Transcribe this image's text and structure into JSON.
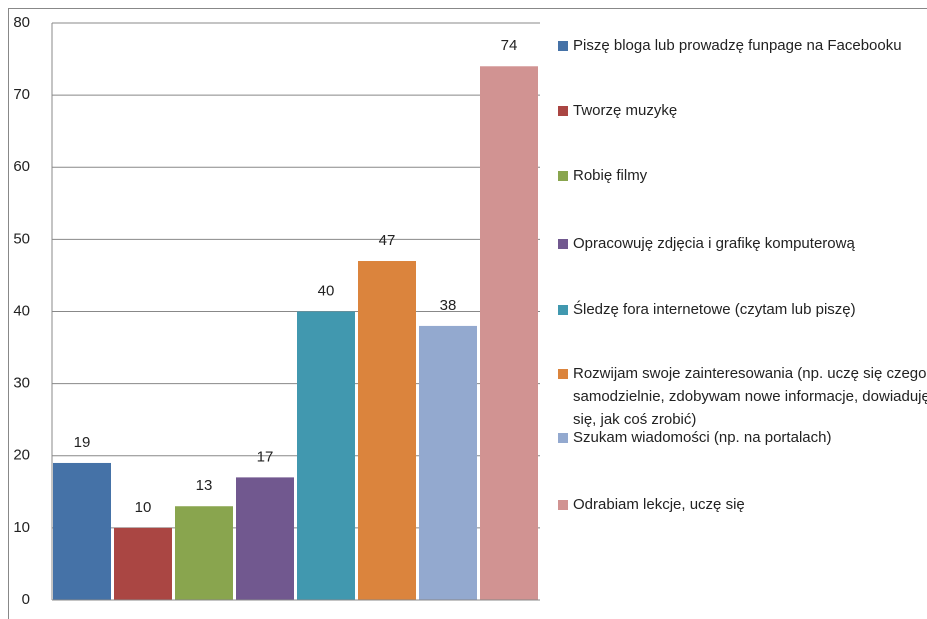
{
  "chart_data": {
    "type": "bar",
    "series": [
      {
        "name": "Piszę bloga lub prowadzę funpage na Facebooku",
        "color": "#4572a7",
        "values": [
          19
        ]
      },
      {
        "name": "Tworzę muzykę",
        "color": "#aa4643",
        "values": [
          10
        ]
      },
      {
        "name": "Robię filmy",
        "color": "#89a54e",
        "values": [
          13
        ]
      },
      {
        "name": "Opracowuję zdjęcia i grafikę komputerową",
        "color": "#71588f",
        "values": [
          17
        ]
      },
      {
        "name": "Śledzę fora internetowe (czytam lub piszę)",
        "color": "#4198af",
        "values": [
          40
        ]
      },
      {
        "name": "Rozwijam swoje zainteresowania (np. uczę się czegoś samodzielnie, zdobywam nowe informacje, dowiaduję się, jak coś zrobić)",
        "color": "#db843d",
        "values": [
          47
        ]
      },
      {
        "name": "Szukam wiadomości (np. na portalach)",
        "color": "#93a9cf",
        "values": [
          38
        ]
      },
      {
        "name": "Odrabiam lekcje, uczę się",
        "color": "#d19392",
        "values": [
          74
        ]
      }
    ],
    "ylim": [
      0,
      80
    ],
    "yticks": [
      0,
      10,
      20,
      30,
      40,
      50,
      60,
      70,
      80
    ],
    "grid": true,
    "legend": "right"
  }
}
